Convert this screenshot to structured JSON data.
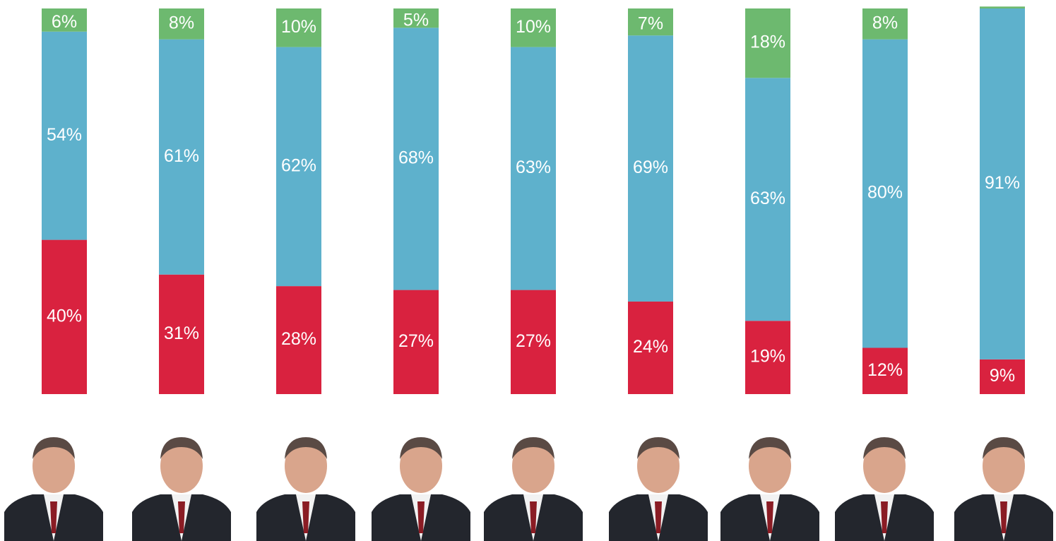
{
  "chart_data": {
    "type": "stacked_bar",
    "ylim": [
      0,
      100
    ],
    "series": [
      {
        "color": "#d9223f",
        "values": [
          40,
          31,
          28,
          27,
          27,
          24,
          19,
          12,
          9
        ],
        "value_labels": [
          "40%",
          "31%",
          "28%",
          "27%",
          "27%",
          "24%",
          "19%",
          "12%",
          "9%"
        ]
      },
      {
        "color": "#5eb1cc",
        "values": [
          54,
          61,
          62,
          68,
          63,
          69,
          63,
          80,
          91
        ],
        "value_labels": [
          "54%",
          "61%",
          "62%",
          "68%",
          "63%",
          "69%",
          "63%",
          "80%",
          "91%"
        ]
      },
      {
        "color": "#6db96f",
        "values": [
          6,
          8,
          10,
          5,
          10,
          7,
          18,
          8,
          0.5
        ],
        "value_labels": [
          "6%",
          "8%",
          "10%",
          "5%",
          "10%",
          "7%",
          "18%",
          "8%",
          null
        ]
      }
    ]
  }
}
